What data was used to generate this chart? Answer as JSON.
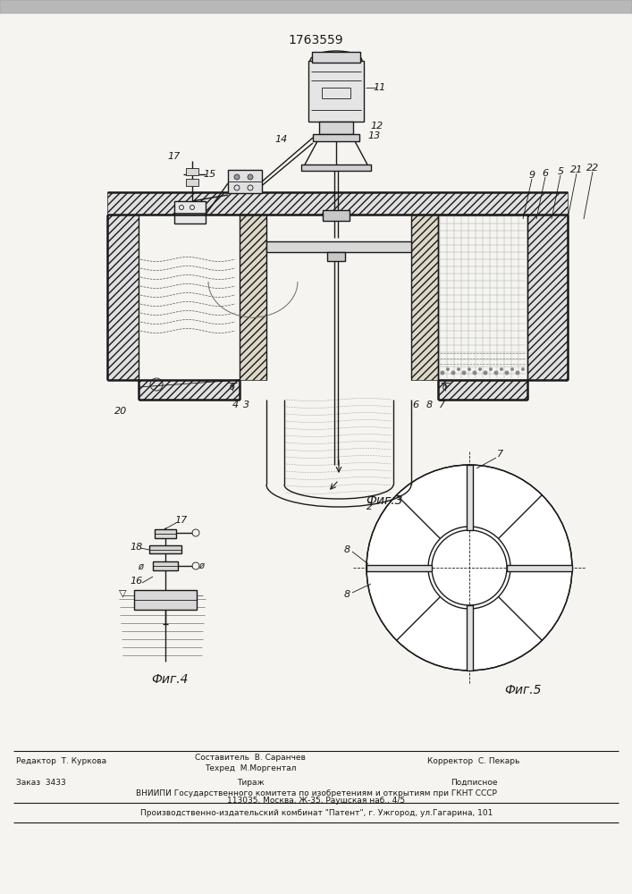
{
  "patent_number": "1763559",
  "bg_color": "#f5f4f0",
  "line_color": "#1a1a1a",
  "fig3_caption": "Фиг.3",
  "fig4_caption": "Фиг.4",
  "fig5_caption": "Фиг.5",
  "footer_editor": "Редактор  Т. Куркова",
  "footer_composer": "Составитель  В. Саранчев",
  "footer_techred": "Техред  М.Моргентал",
  "footer_corrector": "Корректор  С. Пекарь",
  "footer_order": "Заказ  3433",
  "footer_tirazh": "Тираж",
  "footer_podpisnoe": "Подписное",
  "footer_vniipи": "ВНИИПИ Государственного комитета по изобретениям и открытиям при ГКНТ СССР",
  "footer_address": "113035, Москва, Ж-35, Раушская наб., 4/5",
  "footer_patent": "Производственно-издательский комбинат \"Патент\", г. Ужгород, ул.Гагарина, 101"
}
